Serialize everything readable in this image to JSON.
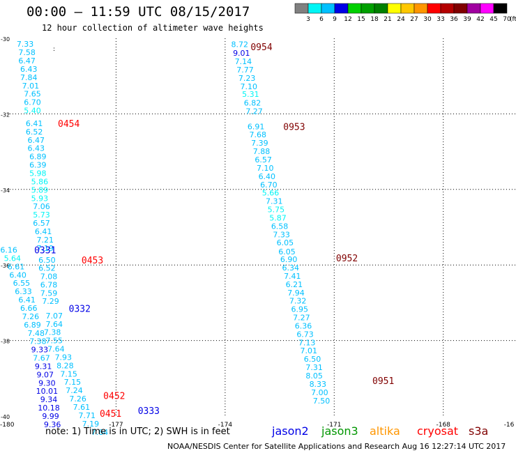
{
  "header": {
    "title": "00:00 – 11:59 UTC 08/15/2017",
    "subtitle": "12 hour collection of altimeter wave heights"
  },
  "colorbar": {
    "labels": [
      "3",
      "6",
      "9",
      "12",
      "15",
      "18",
      "21",
      "24",
      "27",
      "30",
      "33",
      "36",
      "39",
      "42",
      "45",
      "70"
    ],
    "unit": "(ft)",
    "colors": [
      "#808080",
      "#00f5f5",
      "#00c0ff",
      "#0000e6",
      "#00d000",
      "#00a000",
      "#008000",
      "#ffff00",
      "#ffc800",
      "#ff9600",
      "#ff0000",
      "#b40000",
      "#800000",
      "#a000a0",
      "#ff00ff",
      "#000000"
    ]
  },
  "footer": {
    "note": "note:  1) Time is in UTC;  2) SWH is in feet",
    "credit": "NOAA/NESDIS Center for Satellite Applications and Research    Aug 16 12:27:14 UTC 2017",
    "satellites": [
      {
        "name": "jason2",
        "color": "#0000e6"
      },
      {
        "name": "jason3",
        "color": "#009600"
      },
      {
        "name": "altika",
        "color": "#ff9600"
      },
      {
        "name": "cryosat",
        "color": "#ff0000"
      },
      {
        "name": "s3a",
        "color": "#800000"
      }
    ]
  },
  "chart_data": {
    "type": "scatter",
    "xlim": [
      -180,
      -166
    ],
    "ylim": [
      -40,
      -30
    ],
    "x_ticks": [
      "-180",
      "-177",
      "-174",
      "-171",
      "-168",
      "-16"
    ],
    "y_ticks": [
      "-30",
      "-32",
      "-34",
      "-36",
      "-38",
      "-40"
    ],
    "grid": true,
    "time_labels": [
      {
        "text": "0954",
        "x": -173.3,
        "y": -30.22,
        "color": "#800000"
      },
      {
        "text": "0953",
        "x": -172.4,
        "y": -32.33,
        "color": "#800000"
      },
      {
        "text": "0952",
        "x": -170.95,
        "y": -35.81,
        "color": "#800000"
      },
      {
        "text": "0951",
        "x": -169.95,
        "y": -39.06,
        "color": "#800000"
      },
      {
        "text": "0454",
        "x": -178.6,
        "y": -32.25,
        "color": "#ff0000"
      },
      {
        "text": "0453",
        "x": -177.95,
        "y": -35.87,
        "color": "#ff0000"
      },
      {
        "text": "0452",
        "x": -177.35,
        "y": -39.46,
        "color": "#ff0000"
      },
      {
        "text": "0451",
        "x": -177.45,
        "y": -39.93,
        "color": "#ff0000"
      },
      {
        "text": "0331",
        "x": -179.25,
        "y": -35.6,
        "color": "#0000e6"
      },
      {
        "text": "0332",
        "x": -178.3,
        "y": -37.15,
        "color": "#0000e6"
      },
      {
        "text": "0333",
        "x": -176.4,
        "y": -39.85,
        "color": "#0000e6"
      }
    ],
    "points": [
      {
        "v": "8.72",
        "x": -173.6,
        "y": -30.16,
        "color": "#00c0ff"
      },
      {
        "v": "9.01",
        "x": -173.55,
        "y": -30.39,
        "color": "#0000e6"
      },
      {
        "v": "7.14",
        "x": -173.5,
        "y": -30.61,
        "color": "#00c0ff"
      },
      {
        "v": "7.77",
        "x": -173.45,
        "y": -30.83,
        "color": "#00c0ff"
      },
      {
        "v": "7.23",
        "x": -173.4,
        "y": -31.05,
        "color": "#00c0ff"
      },
      {
        "v": "7.10",
        "x": -173.35,
        "y": -31.27,
        "color": "#00c0ff"
      },
      {
        "v": "5.31",
        "x": -173.3,
        "y": -31.48,
        "color": "#00f5f5"
      },
      {
        "v": "6.82",
        "x": -173.25,
        "y": -31.71,
        "color": "#00c0ff"
      },
      {
        "v": "7.27",
        "x": -173.2,
        "y": -31.93,
        "color": "#00c0ff"
      },
      {
        "v": "6.91",
        "x": -173.15,
        "y": -32.33,
        "color": "#00c0ff"
      },
      {
        "v": "7.68",
        "x": -173.1,
        "y": -32.55,
        "color": "#00c0ff"
      },
      {
        "v": "7.39",
        "x": -173.05,
        "y": -32.77,
        "color": "#00c0ff"
      },
      {
        "v": "7.88",
        "x": -173.0,
        "y": -32.99,
        "color": "#00c0ff"
      },
      {
        "v": "6.57",
        "x": -172.95,
        "y": -33.21,
        "color": "#00c0ff"
      },
      {
        "v": "7.10",
        "x": -172.9,
        "y": -33.43,
        "color": "#00c0ff"
      },
      {
        "v": "6.40",
        "x": -172.85,
        "y": -33.65,
        "color": "#00c0ff"
      },
      {
        "v": "6.70",
        "x": -172.8,
        "y": -33.87,
        "color": "#00c0ff"
      },
      {
        "v": "5.66",
        "x": -172.75,
        "y": -34.09,
        "color": "#00f5f5"
      },
      {
        "v": "7.31",
        "x": -172.65,
        "y": -34.31,
        "color": "#00c0ff"
      },
      {
        "v": "5.75",
        "x": -172.6,
        "y": -34.53,
        "color": "#00f5f5"
      },
      {
        "v": "5.87",
        "x": -172.55,
        "y": -34.75,
        "color": "#00f5f5"
      },
      {
        "v": "6.58",
        "x": -172.5,
        "y": -34.97,
        "color": "#00c0ff"
      },
      {
        "v": "7.33",
        "x": -172.45,
        "y": -35.19,
        "color": "#00c0ff"
      },
      {
        "v": "6.05",
        "x": -172.35,
        "y": -35.41,
        "color": "#00c0ff"
      },
      {
        "v": "6.05",
        "x": -172.3,
        "y": -35.65,
        "color": "#00c0ff"
      },
      {
        "v": "6.90",
        "x": -172.25,
        "y": -35.85,
        "color": "#00c0ff"
      },
      {
        "v": "6.34",
        "x": -172.2,
        "y": -36.07,
        "color": "#00c0ff"
      },
      {
        "v": "7.41",
        "x": -172.15,
        "y": -36.29,
        "color": "#00c0ff"
      },
      {
        "v": "6.21",
        "x": -172.1,
        "y": -36.51,
        "color": "#00c0ff"
      },
      {
        "v": "7.94",
        "x": -172.05,
        "y": -36.73,
        "color": "#00c0ff"
      },
      {
        "v": "7.32",
        "x": -172.0,
        "y": -36.95,
        "color": "#00c0ff"
      },
      {
        "v": "6.95",
        "x": -171.95,
        "y": -37.17,
        "color": "#00c0ff"
      },
      {
        "v": "7.27",
        "x": -171.9,
        "y": -37.39,
        "color": "#00c0ff"
      },
      {
        "v": "6.36",
        "x": -171.85,
        "y": -37.61,
        "color": "#00c0ff"
      },
      {
        "v": "6.73",
        "x": -171.8,
        "y": -37.83,
        "color": "#00c0ff"
      },
      {
        "v": "7.13",
        "x": -171.75,
        "y": -38.05,
        "color": "#00c0ff"
      },
      {
        "v": "7.01",
        "x": -171.7,
        "y": -38.27,
        "color": "#00c0ff"
      },
      {
        "v": "6.50",
        "x": -171.6,
        "y": -38.49,
        "color": "#00c0ff"
      },
      {
        "v": "7.31",
        "x": -171.55,
        "y": -38.71,
        "color": "#00c0ff"
      },
      {
        "v": "8.05",
        "x": -171.55,
        "y": -38.93,
        "color": "#00c0ff"
      },
      {
        "v": "8.33",
        "x": -171.45,
        "y": -39.15,
        "color": "#00c0ff"
      },
      {
        "v": "7.00",
        "x": -171.4,
        "y": -39.37,
        "color": "#00c0ff"
      },
      {
        "v": "7.50",
        "x": -171.35,
        "y": -39.59,
        "color": "#00c0ff"
      },
      {
        "v": "7.33",
        "x": -179.5,
        "y": -30.15,
        "color": "#00c0ff"
      },
      {
        "v": "7.58",
        "x": -179.45,
        "y": -30.37,
        "color": "#00c0ff"
      },
      {
        "v": "6.47",
        "x": -179.45,
        "y": -30.59,
        "color": "#00c0ff"
      },
      {
        "v": "6.43",
        "x": -179.4,
        "y": -30.81,
        "color": "#00c0ff"
      },
      {
        "v": "7.84",
        "x": -179.4,
        "y": -31.03,
        "color": "#00c0ff"
      },
      {
        "v": "7.01",
        "x": -179.35,
        "y": -31.25,
        "color": "#00c0ff"
      },
      {
        "v": "7.65",
        "x": -179.3,
        "y": -31.47,
        "color": "#00c0ff"
      },
      {
        "v": "6.70",
        "x": -179.3,
        "y": -31.69,
        "color": "#00c0ff"
      },
      {
        "v": "5.40",
        "x": -179.3,
        "y": -31.91,
        "color": "#00f5f5"
      },
      {
        "v": "6.41",
        "x": -179.25,
        "y": -32.25,
        "color": "#00c0ff"
      },
      {
        "v": "6.52",
        "x": -179.25,
        "y": -32.47,
        "color": "#00c0ff"
      },
      {
        "v": "6.47",
        "x": -179.2,
        "y": -32.69,
        "color": "#00c0ff"
      },
      {
        "v": "6.43",
        "x": -179.2,
        "y": -32.91,
        "color": "#00c0ff"
      },
      {
        "v": "6.89",
        "x": -179.15,
        "y": -33.13,
        "color": "#00c0ff"
      },
      {
        "v": "6.39",
        "x": -179.15,
        "y": -33.35,
        "color": "#00c0ff"
      },
      {
        "v": "5.98",
        "x": -179.15,
        "y": -33.57,
        "color": "#00f5f5"
      },
      {
        "v": "5.86",
        "x": -179.1,
        "y": -33.79,
        "color": "#00f5f5"
      },
      {
        "v": "5.89",
        "x": -179.1,
        "y": -34.01,
        "color": "#00f5f5"
      },
      {
        "v": "5.93",
        "x": -179.1,
        "y": -34.23,
        "color": "#00f5f5"
      },
      {
        "v": "7.06",
        "x": -179.05,
        "y": -34.45,
        "color": "#00c0ff"
      },
      {
        "v": "5.73",
        "x": -179.05,
        "y": -34.67,
        "color": "#00f5f5"
      },
      {
        "v": "6.57",
        "x": -179.05,
        "y": -34.89,
        "color": "#00c0ff"
      },
      {
        "v": "6.41",
        "x": -179.0,
        "y": -35.11,
        "color": "#00c0ff"
      },
      {
        "v": "7.21",
        "x": -178.95,
        "y": -35.33,
        "color": "#00c0ff"
      },
      {
        "v": "7.19",
        "x": -178.95,
        "y": -35.55,
        "color": "#00c0ff"
      },
      {
        "v": "6.50",
        "x": -178.9,
        "y": -35.87,
        "color": "#00c0ff"
      },
      {
        "v": "6.52",
        "x": -178.9,
        "y": -36.08,
        "color": "#00c0ff"
      },
      {
        "v": "7.08",
        "x": -178.85,
        "y": -36.3,
        "color": "#00c0ff"
      },
      {
        "v": "6.78",
        "x": -178.85,
        "y": -36.52,
        "color": "#00c0ff"
      },
      {
        "v": "7.59",
        "x": -178.85,
        "y": -36.74,
        "color": "#00c0ff"
      },
      {
        "v": "7.29",
        "x": -178.8,
        "y": -36.96,
        "color": "#00c0ff"
      },
      {
        "v": "7.07",
        "x": -178.7,
        "y": -37.34,
        "color": "#00c0ff"
      },
      {
        "v": "7.64",
        "x": -178.7,
        "y": -37.56,
        "color": "#00c0ff"
      },
      {
        "v": "7.38",
        "x": -178.75,
        "y": -37.78,
        "color": "#00c0ff"
      },
      {
        "v": "7.55",
        "x": -178.7,
        "y": -38.0,
        "color": "#00c0ff"
      },
      {
        "v": "7.64",
        "x": -178.65,
        "y": -38.22,
        "color": "#00c0ff"
      },
      {
        "v": "7.93",
        "x": -178.45,
        "y": -38.44,
        "color": "#00c0ff"
      },
      {
        "v": "8.28",
        "x": -178.4,
        "y": -38.66,
        "color": "#00c0ff"
      },
      {
        "v": "7.15",
        "x": -178.3,
        "y": -38.88,
        "color": "#00c0ff"
      },
      {
        "v": "7.15",
        "x": -178.2,
        "y": -39.1,
        "color": "#00c0ff"
      },
      {
        "v": "7.24",
        "x": -178.15,
        "y": -39.32,
        "color": "#00c0ff"
      },
      {
        "v": "7.26",
        "x": -178.05,
        "y": -39.54,
        "color": "#00c0ff"
      },
      {
        "v": "7.61",
        "x": -177.95,
        "y": -39.76,
        "color": "#00c0ff"
      },
      {
        "v": "7.71",
        "x": -177.8,
        "y": -39.98,
        "color": "#00c0ff"
      },
      {
        "v": "7.19",
        "x": -177.7,
        "y": -40.2,
        "color": "#00c0ff"
      },
      {
        "v": "7.64",
        "x": -177.45,
        "y": -40.42,
        "color": "#00c0ff"
      },
      {
        "v": "6.16",
        "x": -179.95,
        "y": -35.6,
        "color": "#00c0ff"
      },
      {
        "v": "5.64",
        "x": -179.85,
        "y": -35.82,
        "color": "#00f5f5"
      },
      {
        "v": "6.61",
        "x": -179.75,
        "y": -36.04,
        "color": "#00c0ff"
      },
      {
        "v": "6.40",
        "x": -179.7,
        "y": -36.26,
        "color": "#00c0ff"
      },
      {
        "v": "6.55",
        "x": -179.6,
        "y": -36.48,
        "color": "#00c0ff"
      },
      {
        "v": "6.33",
        "x": -179.55,
        "y": -36.7,
        "color": "#00c0ff"
      },
      {
        "v": "6.41",
        "x": -179.45,
        "y": -36.92,
        "color": "#00c0ff"
      },
      {
        "v": "6.66",
        "x": -179.4,
        "y": -37.14,
        "color": "#00c0ff"
      },
      {
        "v": "7.26",
        "x": -179.35,
        "y": -37.36,
        "color": "#00c0ff"
      },
      {
        "v": "6.89",
        "x": -179.3,
        "y": -37.58,
        "color": "#00c0ff"
      },
      {
        "v": "7.48",
        "x": -179.2,
        "y": -37.8,
        "color": "#00c0ff"
      },
      {
        "v": "7.38",
        "x": -179.15,
        "y": -38.02,
        "color": "#00c0ff"
      },
      {
        "v": "9.33",
        "x": -179.1,
        "y": -38.24,
        "color": "#0000e6"
      },
      {
        "v": "7.67",
        "x": -179.05,
        "y": -38.46,
        "color": "#00c0ff"
      },
      {
        "v": "9.31",
        "x": -179.0,
        "y": -38.68,
        "color": "#0000e6"
      },
      {
        "v": "9.07",
        "x": -178.95,
        "y": -38.9,
        "color": "#0000e6"
      },
      {
        "v": "9.30",
        "x": -178.9,
        "y": -39.12,
        "color": "#0000e6"
      },
      {
        "v": "10.01",
        "x": -178.9,
        "y": -39.34,
        "color": "#0000e6"
      },
      {
        "v": "9.34",
        "x": -178.85,
        "y": -39.56,
        "color": "#0000e6"
      },
      {
        "v": "10.18",
        "x": -178.85,
        "y": -39.78,
        "color": "#0000e6"
      },
      {
        "v": "9.99",
        "x": -178.8,
        "y": -40.0,
        "color": "#0000e6"
      },
      {
        "v": "9.36",
        "x": -178.75,
        "y": -40.22,
        "color": "#0000e6"
      }
    ]
  }
}
